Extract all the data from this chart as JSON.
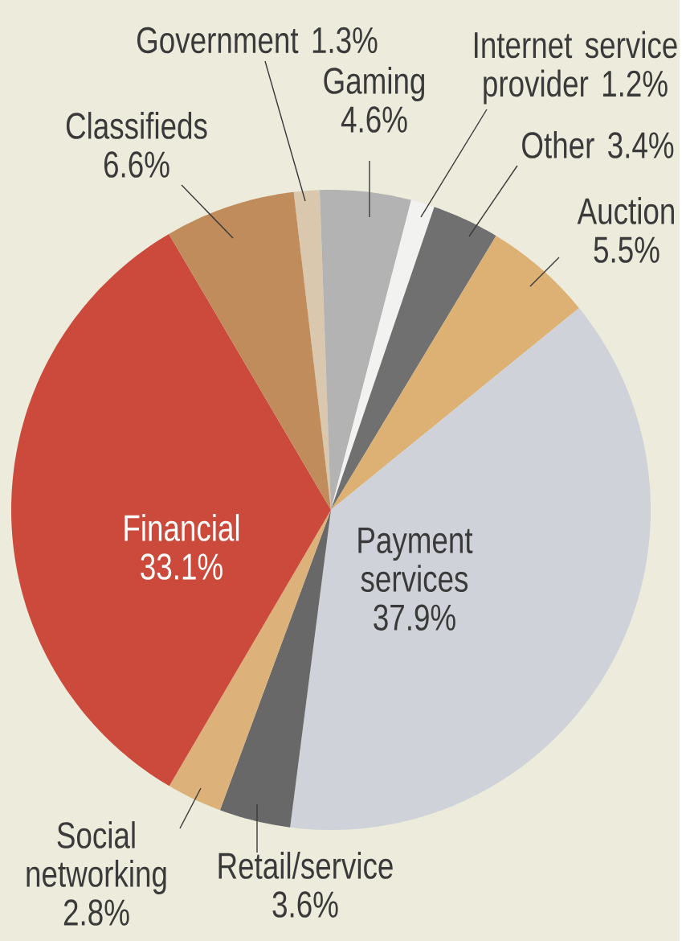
{
  "chart_data": {
    "type": "pie",
    "categories": [
      "Government",
      "Gaming",
      "Internet service provider",
      "Other",
      "Auction",
      "Payment services",
      "Retail/service",
      "Social networking",
      "Financial",
      "Classifieds"
    ],
    "values": [
      1.3,
      4.6,
      1.2,
      3.4,
      5.5,
      37.9,
      3.6,
      2.8,
      33.1,
      6.6
    ],
    "value_labels": [
      "1.3%",
      "4.6%",
      "1.2%",
      "3.4%",
      "5.5%",
      "37.9%",
      "3.6%",
      "2.8%",
      "33.1%",
      "6.6%"
    ],
    "colors": [
      "#d9c8ae",
      "#b3b3b3",
      "#f2f2f0",
      "#707070",
      "#ddb173",
      "#cfd2d8",
      "#686868",
      "#dcb27a",
      "#cc4a3b",
      "#c08c5c"
    ]
  }
}
